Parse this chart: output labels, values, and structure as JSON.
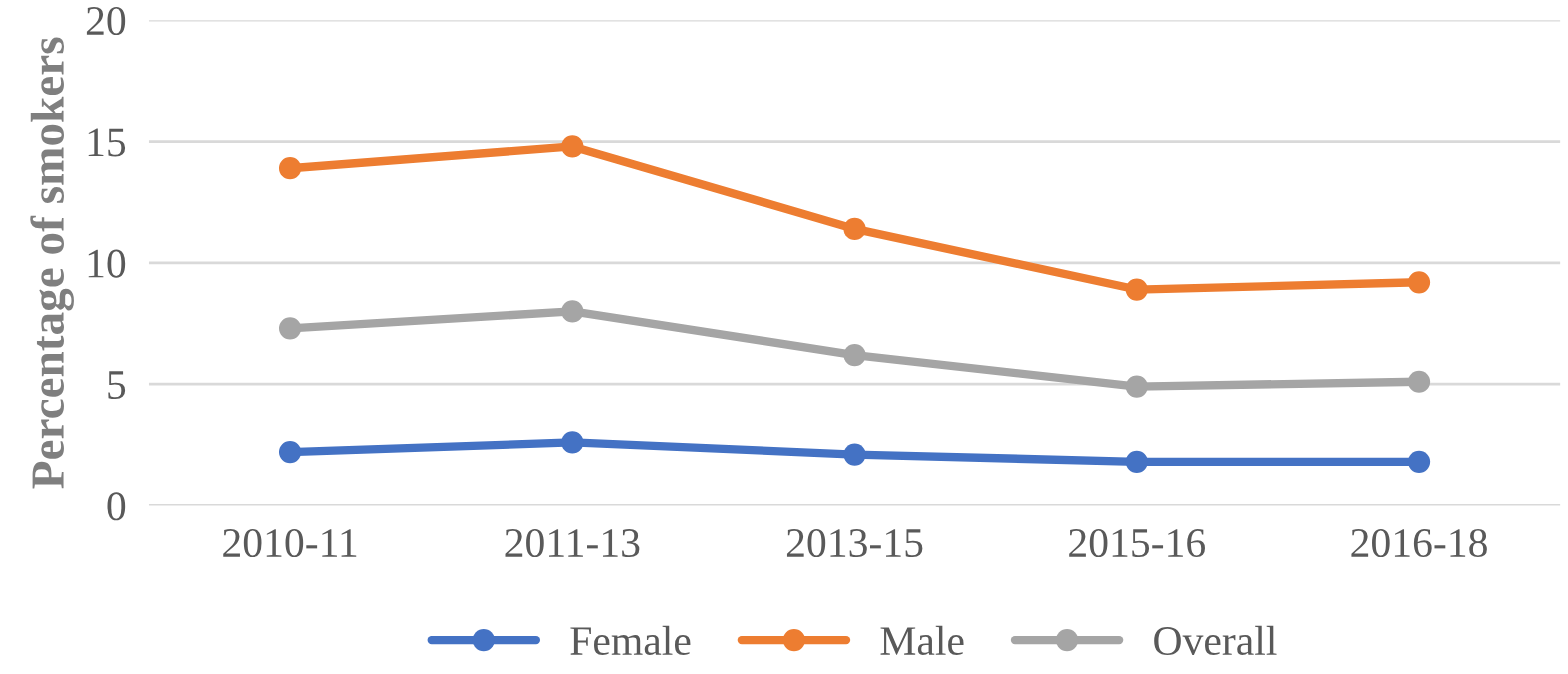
{
  "chart_data": {
    "type": "line",
    "ylabel": "Percentage of smokers",
    "categories": [
      "2010-11",
      "2011-13",
      "2013-15",
      "2015-16",
      "2016-18"
    ],
    "series": [
      {
        "name": "Female",
        "color": "#4472c4",
        "values": [
          2.2,
          2.6,
          2.1,
          1.8,
          1.8
        ]
      },
      {
        "name": "Male",
        "color": "#ed7d31",
        "values": [
          13.9,
          14.8,
          11.4,
          8.9,
          9.2
        ]
      },
      {
        "name": "Overall",
        "color": "#a5a5a5",
        "values": [
          7.3,
          8.0,
          6.2,
          4.9,
          5.1
        ]
      }
    ],
    "ylim": [
      0,
      20
    ],
    "yticks": [
      0,
      5,
      10,
      15,
      20
    ],
    "grid": "y",
    "legend": "bottom",
    "marker": "circle",
    "line_style": "solid"
  }
}
